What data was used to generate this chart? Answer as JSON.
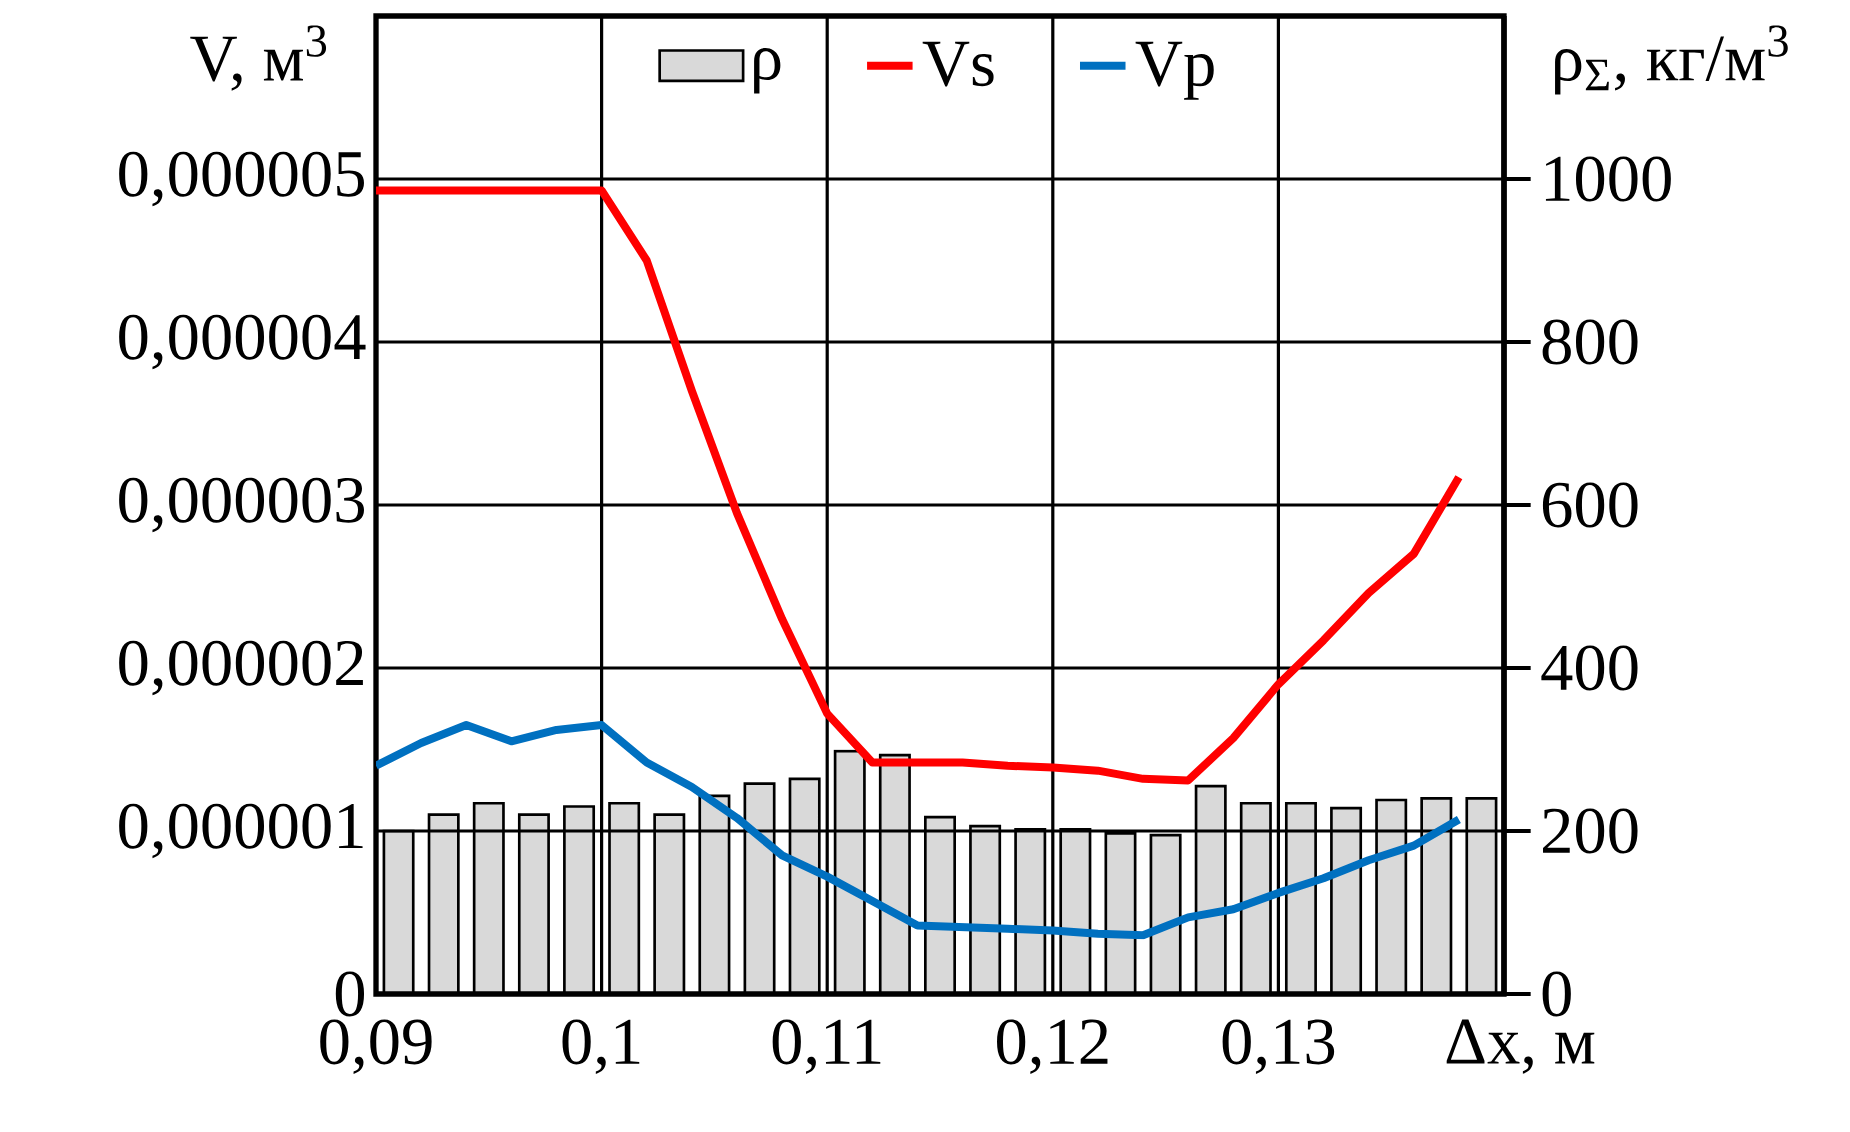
{
  "chart_data": {
    "type": "line",
    "xlabel": "Δx, м",
    "ylabel": "V, м$^{3}$",
    "y2label": "ρ$_{Σ}$, кг/м$^{3}$",
    "xlim": [
      0.09,
      0.14
    ],
    "xticks": [
      {
        "value": 0.09,
        "label": "0,09"
      },
      {
        "value": 0.1,
        "label": "0,1"
      },
      {
        "value": 0.11,
        "label": "0,11"
      },
      {
        "value": 0.12,
        "label": "0,12"
      },
      {
        "value": 0.13,
        "label": "0,13"
      }
    ],
    "ylim": [
      0,
      6e-06
    ],
    "yticks": [
      0,
      {
        "value": 1e-06,
        "label": "0,000001"
      },
      {
        "value": 2e-06,
        "label": "0,000002"
      },
      {
        "value": 3e-06,
        "label": "0,000003"
      },
      {
        "value": 4e-06,
        "label": "0,000004"
      },
      {
        "value": 5e-06,
        "label": "0,000005"
      }
    ],
    "y2lim": [
      0,
      1200
    ],
    "y2ticks": [
      0,
      200,
      400,
      600,
      800,
      1000
    ],
    "grid": true,
    "legend": "top",
    "series": [
      {
        "name": "ρ",
        "type": "bar",
        "axis": "y2",
        "color": "#d9d9d9",
        "x": [
          0.091,
          0.093,
          0.095,
          0.097,
          0.099,
          0.101,
          0.103,
          0.105,
          0.107,
          0.109,
          0.111,
          0.113,
          0.115,
          0.117,
          0.119,
          0.121,
          0.123,
          0.125,
          0.127,
          0.129,
          0.131,
          0.133,
          0.135,
          0.137,
          0.139
        ],
        "values": [
          200,
          220,
          234,
          220,
          230,
          234,
          220,
          243,
          258,
          264,
          298,
          293,
          217,
          206,
          202,
          202,
          197,
          195,
          255,
          234,
          234,
          228,
          238,
          240,
          240
        ]
      },
      {
        "name": "Vs",
        "color": "#ff0000",
        "x": [
          0.09,
          0.092,
          0.094,
          0.096,
          0.098,
          0.1,
          0.102,
          0.104,
          0.106,
          0.108,
          0.11,
          0.112,
          0.114,
          0.116,
          0.118,
          0.12,
          0.122,
          0.124,
          0.126,
          0.128,
          0.13,
          0.132,
          0.134,
          0.136,
          0.138
        ],
        "values": [
          4.93e-06,
          4.93e-06,
          4.93e-06,
          4.93e-06,
          4.93e-06,
          4.93e-06,
          4.5e-06,
          3.7e-06,
          2.95e-06,
          2.3e-06,
          1.72e-06,
          1.42e-06,
          1.42e-06,
          1.42e-06,
          1.4e-06,
          1.39e-06,
          1.37e-06,
          1.32e-06,
          1.31e-06,
          1.57e-06,
          1.9e-06,
          2.17e-06,
          2.46e-06,
          2.7e-06,
          3.17e-06
        ]
      },
      {
        "name": "Vp",
        "color": "#0070c0",
        "x": [
          0.09,
          0.092,
          0.094,
          0.096,
          0.098,
          0.1,
          0.102,
          0.104,
          0.106,
          0.108,
          0.11,
          0.112,
          0.114,
          0.116,
          0.118,
          0.12,
          0.122,
          0.124,
          0.126,
          0.128,
          0.13,
          0.132,
          0.134,
          0.136,
          0.138
        ],
        "values": [
          1.4e-06,
          1.54e-06,
          1.65e-06,
          1.55e-06,
          1.62e-06,
          1.65e-06,
          1.42e-06,
          1.27e-06,
          1.08e-06,
          8.5e-07,
          7.2e-07,
          5.7e-07,
          4.2e-07,
          4.1e-07,
          4e-07,
          3.9e-07,
          3.7e-07,
          3.6e-07,
          4.7e-07,
          5.2e-07,
          6.2e-07,
          7.1e-07,
          8.2e-07,
          9.1e-07,
          1.07e-06
        ]
      }
    ]
  }
}
